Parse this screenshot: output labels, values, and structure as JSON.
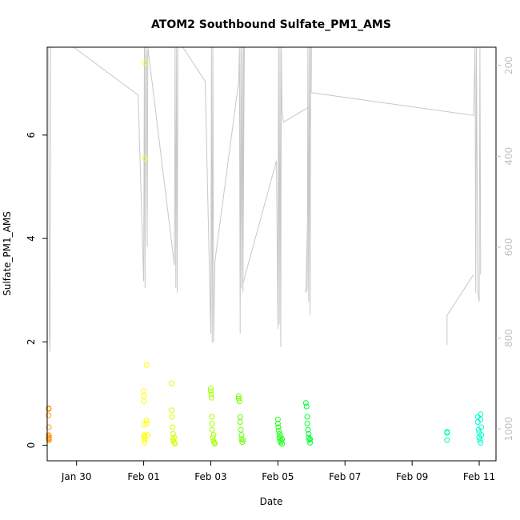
{
  "chart_data": {
    "type": "scatter",
    "title": "ATOM2 Southbound Sulfate_PM1_AMS",
    "xlabel": "Date",
    "ylabel": "Sulfate_PM1_AMS",
    "x_ticks": [
      "Jan 30",
      "Feb 01",
      "Feb 03",
      "Feb 05",
      "Feb 07",
      "Feb 09",
      "Feb 11"
    ],
    "y_ticks": [
      "0",
      "2",
      "4",
      "6"
    ],
    "y2_ticks": [
      "200",
      "400",
      "600",
      "800",
      "1000"
    ],
    "xlim": [
      "2017-01-29T03:00",
      "2017-02-11T12:00"
    ],
    "ylim": [
      -0.3,
      7.7
    ],
    "y2lim": [
      1070,
      160
    ],
    "y2_reversed": true,
    "grid": false,
    "legend": "none",
    "marker": "open-circle",
    "point_colors": {
      "jan29": "#ff9a1a",
      "feb01": "#ffff00",
      "feb02": "#d4ff00",
      "feb03": "#a6ff00",
      "feb04": "#6aff00",
      "feb05": "#22ff1a",
      "feb06": "#00ff38",
      "feb10": "#00ffa0",
      "feb11": "#00ffcc"
    },
    "altitude_line_color": "#c8c8c8",
    "series": [
      {
        "group": "jan29",
        "x": [
          "2017-01-29T04:00",
          "2017-01-29T04:00",
          "2017-01-29T04:00",
          "2017-01-29T04:00",
          "2017-01-29T04:10",
          "2017-01-29T04:10",
          "2017-01-29T04:10",
          "2017-01-29T04:20",
          "2017-01-29T04:20",
          "2017-01-29T04:20"
        ],
        "y": [
          0.72,
          0.58,
          0.2,
          0.14,
          0.7,
          0.35,
          0.12,
          0.18,
          0.1,
          0.15
        ]
      },
      {
        "group": "feb01",
        "x": [
          "2017-02-01T00:00",
          "2017-02-01T00:00",
          "2017-02-01T00:10",
          "2017-02-01T00:20",
          "2017-02-01T00:20",
          "2017-02-01T00:30",
          "2017-02-01T00:30",
          "2017-02-01T00:40",
          "2017-02-01T00:40",
          "2017-02-01T01:00",
          "2017-02-01T01:00",
          "2017-02-01T02:00",
          "2017-02-01T02:00",
          "2017-02-01T02:20",
          "2017-02-01T03:00"
        ],
        "y": [
          1.05,
          0.95,
          0.85,
          0.4,
          0.18,
          0.15,
          0.1,
          0.05,
          0.2,
          7.4,
          5.55,
          1.55,
          0.48,
          0.42,
          0.2
        ]
      },
      {
        "group": "feb02",
        "x": [
          "2017-02-01T20:00",
          "2017-02-01T20:00",
          "2017-02-01T20:20",
          "2017-02-01T20:40",
          "2017-02-01T21:00",
          "2017-02-01T21:00",
          "2017-02-01T21:20",
          "2017-02-01T22:00",
          "2017-02-01T22:00",
          "2017-02-01T22:30"
        ],
        "y": [
          1.2,
          0.68,
          0.55,
          0.35,
          0.22,
          0.12,
          0.08,
          0.05,
          0.15,
          0.03
        ]
      },
      {
        "group": "feb03",
        "x": [
          "2017-02-03T00:00",
          "2017-02-03T00:00",
          "2017-02-03T00:20",
          "2017-02-03T00:30",
          "2017-02-03T00:40",
          "2017-02-03T01:00",
          "2017-02-03T01:00",
          "2017-02-03T01:20",
          "2017-02-03T02:00",
          "2017-02-03T02:00",
          "2017-02-03T02:30",
          "2017-02-03T03:00"
        ],
        "y": [
          1.1,
          1.05,
          0.98,
          0.92,
          0.55,
          0.42,
          0.3,
          0.15,
          0.08,
          0.2,
          0.05,
          0.03
        ]
      },
      {
        "group": "feb04",
        "x": [
          "2017-02-03T20:00",
          "2017-02-03T20:00",
          "2017-02-03T20:30",
          "2017-02-03T21:00",
          "2017-02-03T21:00",
          "2017-02-03T21:30",
          "2017-02-03T22:00",
          "2017-02-03T22:00",
          "2017-02-03T22:30",
          "2017-02-03T23:00"
        ],
        "y": [
          0.95,
          0.9,
          0.85,
          0.55,
          0.45,
          0.3,
          0.2,
          0.12,
          0.06,
          0.1
        ]
      },
      {
        "group": "feb05",
        "x": [
          "2017-02-05T00:00",
          "2017-02-05T00:00",
          "2017-02-05T00:20",
          "2017-02-05T00:40",
          "2017-02-05T01:00",
          "2017-02-05T01:00",
          "2017-02-05T01:30",
          "2017-02-05T02:00",
          "2017-02-05T02:00",
          "2017-02-05T02:30",
          "2017-02-05T03:00",
          "2017-02-05T03:00"
        ],
        "y": [
          0.5,
          0.42,
          0.35,
          0.28,
          0.22,
          0.15,
          0.1,
          0.05,
          0.18,
          0.08,
          0.03,
          0.12
        ]
      },
      {
        "group": "feb06",
        "x": [
          "2017-02-05T20:00",
          "2017-02-05T20:30",
          "2017-02-05T21:00",
          "2017-02-05T21:00",
          "2017-02-05T21:30",
          "2017-02-05T22:00",
          "2017-02-05T22:00",
          "2017-02-05T22:30",
          "2017-02-05T23:00",
          "2017-02-05T23:00"
        ],
        "y": [
          0.82,
          0.75,
          0.55,
          0.42,
          0.3,
          0.22,
          0.15,
          0.1,
          0.05,
          0.12
        ]
      },
      {
        "group": "feb10",
        "x": [
          "2017-02-10T01:00",
          "2017-02-10T01:00",
          "2017-02-10T01:00"
        ],
        "y": [
          0.26,
          0.24,
          0.1
        ]
      },
      {
        "group": "feb11",
        "x": [
          "2017-02-10T23:00",
          "2017-02-10T23:00",
          "2017-02-10T23:30",
          "2017-02-11T00:00",
          "2017-02-11T00:00",
          "2017-02-11T00:30",
          "2017-02-11T01:00",
          "2017-02-11T01:00",
          "2017-02-11T01:00",
          "2017-02-11T01:30",
          "2017-02-11T01:30"
        ],
        "y": [
          0.55,
          0.45,
          0.3,
          0.25,
          0.15,
          0.1,
          0.05,
          0.6,
          0.5,
          0.35,
          0.2
        ]
      }
    ]
  }
}
